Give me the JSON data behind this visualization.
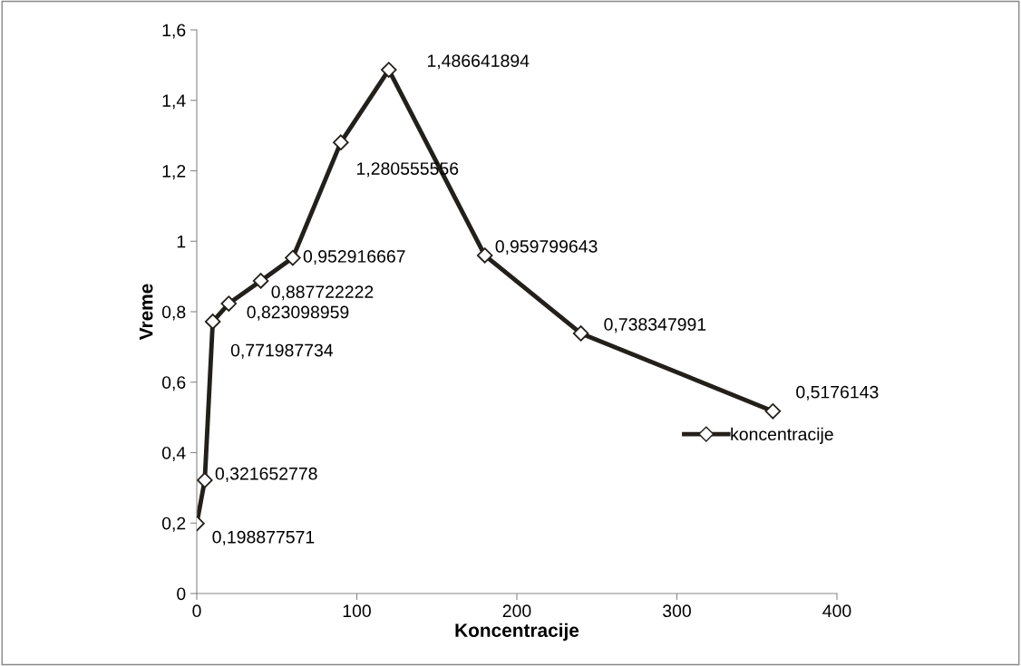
{
  "chart_data": {
    "type": "line",
    "xlabel": "Koncentracije",
    "ylabel": "Vreme",
    "x": [
      0,
      5,
      10,
      20,
      40,
      60,
      90,
      120,
      180,
      240,
      360
    ],
    "series": [
      {
        "name": "koncentracije",
        "color": "#231f1a",
        "values": [
          0.198877571,
          0.321652778,
          0.771987734,
          0.823098959,
          0.887722222,
          0.952916667,
          1.280555556,
          1.486641894,
          0.959799643,
          0.738347991,
          0.5176143
        ]
      }
    ],
    "value_labels": [
      "0,198877571",
      "0,321652778",
      "0,771987734",
      "0,823098959",
      "0,887722222",
      "0,952916667",
      "1,280555556",
      "1,486641894",
      "0,959799643",
      "0,738347991",
      "0,5176143"
    ],
    "xlim": [
      0,
      400
    ],
    "xticks": [
      0,
      100,
      200,
      300,
      400
    ],
    "ylim": [
      0,
      1.6
    ],
    "yticks": [
      {
        "value": 0,
        "label": "0"
      },
      {
        "value": 0.2,
        "label": "0,2"
      },
      {
        "value": 0.4,
        "label": "0,4"
      },
      {
        "value": 0.6,
        "label": "0,6"
      },
      {
        "value": 0.8,
        "label": "0,8"
      },
      {
        "value": 1,
        "label": "1"
      },
      {
        "value": 1.2,
        "label": "1,2"
      },
      {
        "value": 1.4,
        "label": "1,4"
      },
      {
        "value": 1.6,
        "label": "1,6"
      }
    ],
    "grid": false,
    "legend": "right",
    "marker": "diamond",
    "line_style": "solid"
  }
}
